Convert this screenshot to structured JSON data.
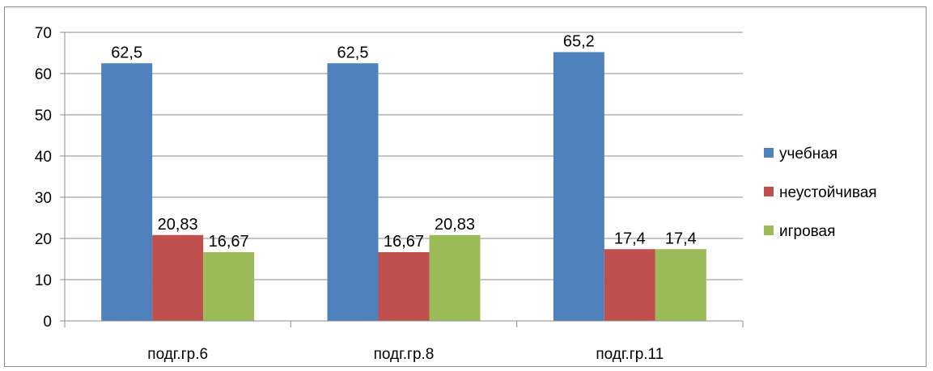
{
  "chart_data": {
    "type": "bar",
    "title": "",
    "xlabel": "",
    "ylabel": "",
    "categories": [
      "подг.гр.6",
      "подг.гр.8",
      "подг.гр.11"
    ],
    "series": [
      {
        "name": "учебная",
        "color": "#4F81BD",
        "values": [
          62.5,
          62.5,
          65.2
        ],
        "labels": [
          "62,5",
          "62,5",
          "65,2"
        ]
      },
      {
        "name": "неустойчивая",
        "color": "#C0504D",
        "values": [
          20.83,
          16.67,
          17.4
        ],
        "labels": [
          "20,83",
          "16,67",
          "17,4"
        ]
      },
      {
        "name": "игровая",
        "color": "#9BBB59",
        "values": [
          16.67,
          20.83,
          17.4
        ],
        "labels": [
          "16,67",
          "20,83",
          "17,4"
        ]
      }
    ],
    "ylim": [
      0,
      70
    ],
    "yticks": [
      0,
      10,
      20,
      30,
      40,
      50,
      60,
      70
    ],
    "grid": true,
    "legend": "right"
  }
}
